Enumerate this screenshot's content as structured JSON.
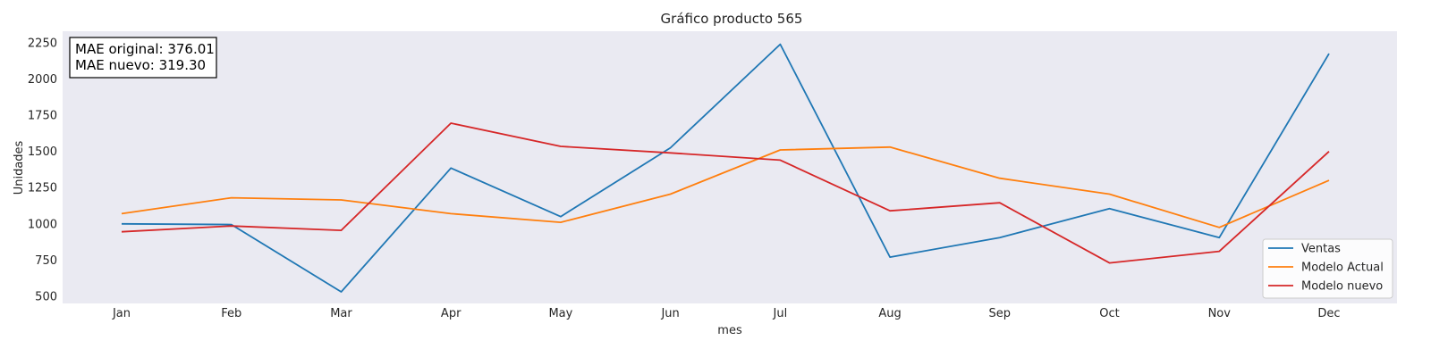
{
  "chart_data": {
    "type": "line",
    "title": "Gráfico producto 565",
    "xlabel": "mes",
    "ylabel": "Unidades",
    "categories": [
      "Jan",
      "Feb",
      "Mar",
      "Apr",
      "May",
      "Jun",
      "Jul",
      "Aug",
      "Sep",
      "Oct",
      "Nov",
      "Dec"
    ],
    "y_ticks": [
      500,
      750,
      1000,
      1250,
      1500,
      1750,
      2000,
      2250
    ],
    "ylim": [
      450,
      2330
    ],
    "grid": false,
    "background_color": "#eaeaf2",
    "legend_position": "lower-right",
    "annotation": {
      "line1": "MAE original: 376.01",
      "line2": "MAE nuevo: 319.30"
    },
    "series": [
      {
        "name": "Ventas",
        "color": "#1f77b4",
        "values": [
          1000,
          995,
          530,
          1385,
          1050,
          1525,
          2240,
          770,
          905,
          1105,
          905,
          2175
        ]
      },
      {
        "name": "Modelo Actual",
        "color": "#ff7f0e",
        "values": [
          1070,
          1180,
          1165,
          1070,
          1010,
          1205,
          1510,
          1530,
          1315,
          1205,
          975,
          1300
        ]
      },
      {
        "name": "Modelo nuevo",
        "color": "#d62728",
        "values": [
          945,
          985,
          955,
          1695,
          1535,
          1490,
          1440,
          1090,
          1145,
          730,
          810,
          1500
        ]
      }
    ]
  }
}
